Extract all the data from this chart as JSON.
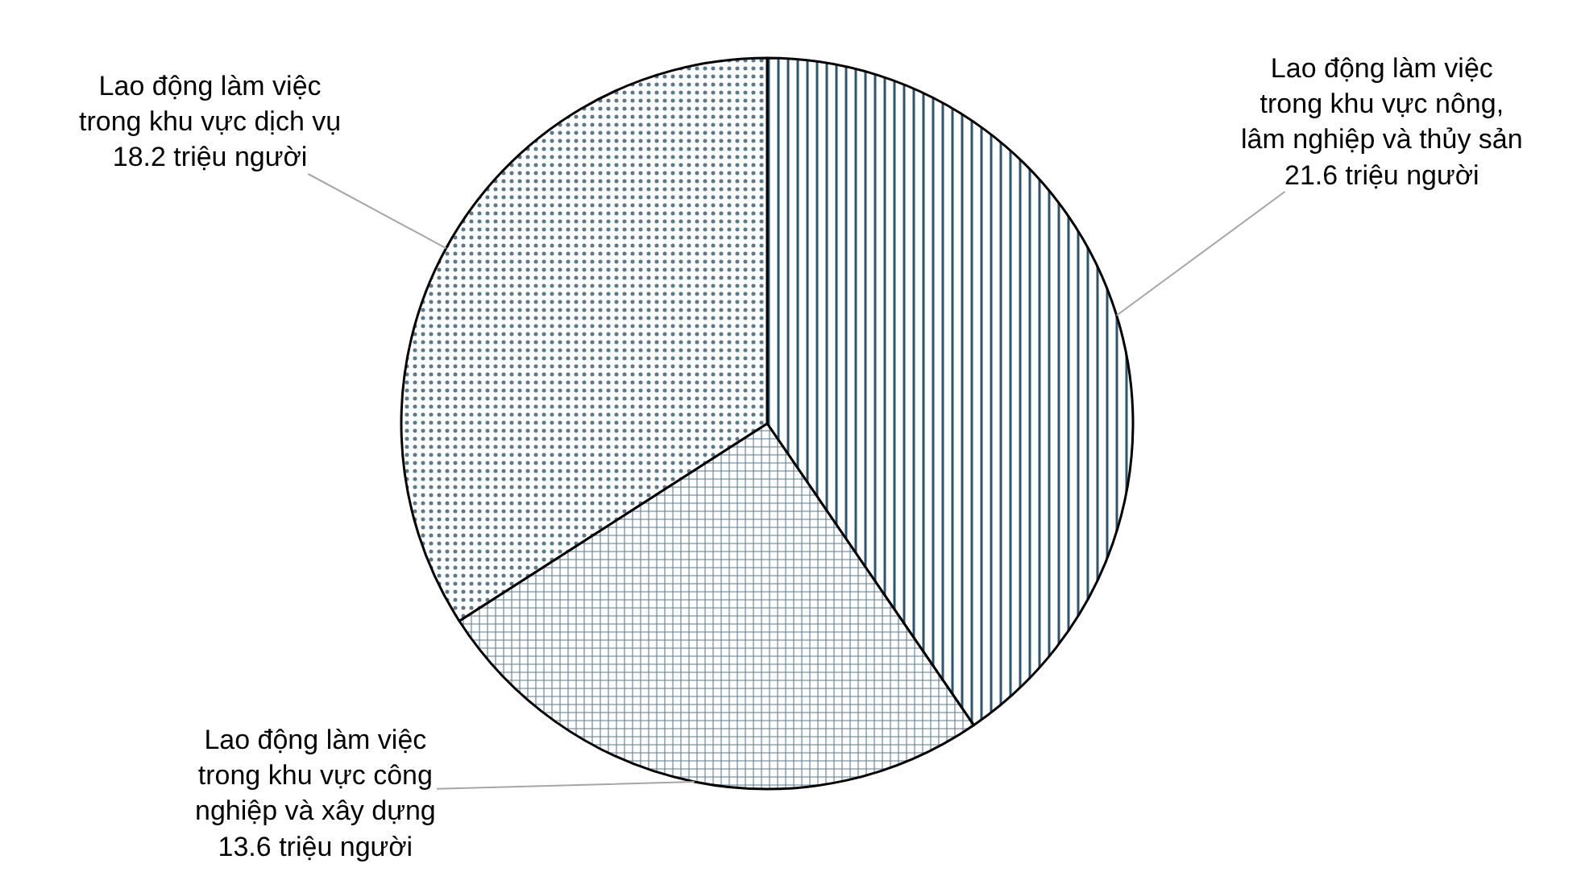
{
  "chart_data": {
    "type": "pie",
    "categories": [
      "Lao động làm việc trong khu vực nông, lâm nghiệp và thủy sản",
      "Lao động làm việc trong khu vực công nghiệp và xây dựng",
      "Lao động làm việc trong khu vực dịch vụ"
    ],
    "values": [
      21.6,
      13.6,
      18.2
    ],
    "value_labels": [
      "21.6 triệu người",
      "13.6 triệu người",
      "18.2 triệu người"
    ],
    "legend": false
  }
}
